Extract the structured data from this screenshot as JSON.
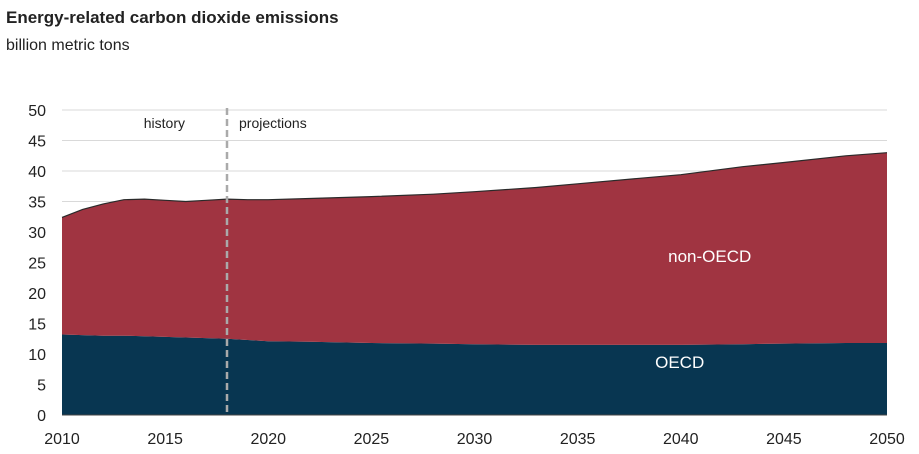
{
  "title": "Energy-related carbon dioxide emissions",
  "subtitle": "billion metric tons",
  "chart_data": {
    "type": "area",
    "stacked": true,
    "x": [
      2010,
      2011,
      2012,
      2013,
      2014,
      2015,
      2016,
      2017,
      2018,
      2019,
      2020,
      2022,
      2025,
      2028,
      2030,
      2033,
      2035,
      2038,
      2040,
      2043,
      2045,
      2048,
      2050
    ],
    "series": [
      {
        "name": "OECD",
        "color": "#083651",
        "values": [
          13.2,
          13.1,
          13.0,
          13.0,
          12.9,
          12.8,
          12.7,
          12.6,
          12.5,
          12.3,
          12.1,
          12.0,
          11.8,
          11.7,
          11.6,
          11.5,
          11.5,
          11.5,
          11.5,
          11.6,
          11.7,
          11.8,
          11.8
        ]
      },
      {
        "name": "non-OECD",
        "color": "#a03441",
        "values": [
          19.2,
          20.6,
          21.6,
          22.3,
          22.5,
          22.4,
          22.3,
          22.6,
          22.9,
          23.0,
          23.2,
          23.5,
          24.0,
          24.5,
          25.0,
          25.8,
          26.4,
          27.3,
          27.9,
          29.1,
          29.7,
          30.7,
          31.2
        ]
      }
    ],
    "xlim": [
      2010,
      2050
    ],
    "ylim": [
      0,
      50
    ],
    "xticks": [
      "2010",
      "2015",
      "2020",
      "2025",
      "2030",
      "2035",
      "2040",
      "2045",
      "2050"
    ],
    "yticks": [
      "0",
      "5",
      "10",
      "15",
      "20",
      "25",
      "30",
      "35",
      "40",
      "45",
      "50"
    ],
    "divider_year": 2018,
    "annotations": {
      "history": "history",
      "projections": "projections"
    },
    "grid": true,
    "outline_color": "#2a2a2a",
    "divider_color": "#aaaaaa"
  }
}
